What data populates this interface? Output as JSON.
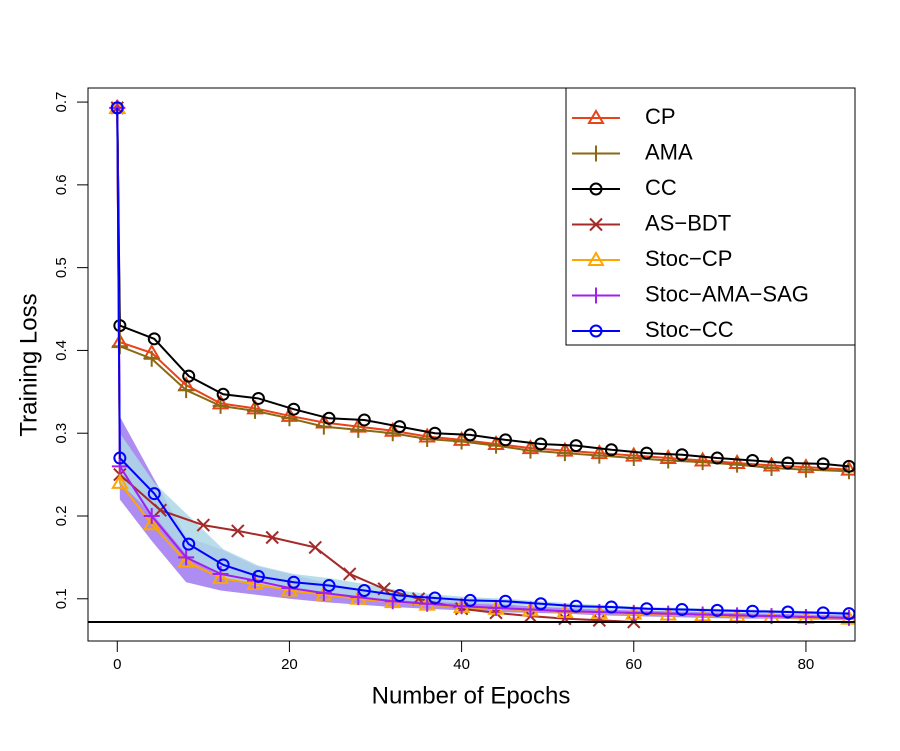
{
  "chart_data": {
    "type": "line",
    "xlabel": "Number of Epochs",
    "ylabel": "Training Loss",
    "xlim": [
      -3.4,
      85.7
    ],
    "ylim": [
      0.049,
      0.717
    ],
    "xticks": [
      0,
      20,
      40,
      60,
      80
    ],
    "yticks": [
      0.1,
      0.2,
      0.3,
      0.4,
      0.5,
      0.6,
      0.7
    ],
    "reference_line": 0.072,
    "legend": "top-right",
    "series": [
      {
        "name": "CP",
        "color": "#E8441A",
        "marker": "triangle",
        "x": [
          0,
          0.3,
          4,
          8,
          12,
          16,
          20,
          24,
          28,
          32,
          36,
          40,
          44,
          48,
          52,
          56,
          60,
          64,
          68,
          72,
          76,
          80,
          85
        ],
        "values": [
          0.693,
          0.41,
          0.397,
          0.358,
          0.336,
          0.33,
          0.321,
          0.313,
          0.308,
          0.303,
          0.296,
          0.292,
          0.287,
          0.282,
          0.279,
          0.276,
          0.273,
          0.27,
          0.267,
          0.264,
          0.261,
          0.259,
          0.256
        ]
      },
      {
        "name": "AMA",
        "color": "#8B6914",
        "marker": "plus",
        "x": [
          0,
          0.3,
          4,
          8,
          12,
          16,
          20,
          24,
          28,
          32,
          36,
          40,
          44,
          48,
          52,
          56,
          60,
          64,
          68,
          72,
          76,
          80,
          85
        ],
        "values": [
          0.693,
          0.405,
          0.39,
          0.352,
          0.333,
          0.327,
          0.318,
          0.308,
          0.304,
          0.3,
          0.293,
          0.29,
          0.285,
          0.279,
          0.276,
          0.273,
          0.27,
          0.267,
          0.265,
          0.262,
          0.258,
          0.256,
          0.254
        ]
      },
      {
        "name": "CC",
        "color": "#000000",
        "marker": "circle",
        "x": [
          0,
          0.3,
          4.3,
          8.3,
          12.3,
          16.4,
          20.5,
          24.6,
          28.7,
          32.8,
          36.9,
          41,
          45.1,
          49.2,
          53.3,
          57.4,
          61.5,
          65.6,
          69.7,
          73.8,
          77.9,
          82,
          85
        ],
        "values": [
          0.693,
          0.43,
          0.414,
          0.369,
          0.347,
          0.342,
          0.329,
          0.318,
          0.316,
          0.308,
          0.3,
          0.298,
          0.292,
          0.287,
          0.285,
          0.28,
          0.276,
          0.274,
          0.27,
          0.267,
          0.264,
          0.263,
          0.26
        ]
      },
      {
        "name": "AS−BDT",
        "color": "#A52A2A",
        "marker": "cross",
        "x": [
          0,
          0.3,
          5,
          10,
          14,
          18,
          23,
          27,
          31,
          35,
          40,
          44,
          48,
          52,
          56,
          60
        ],
        "values": [
          0.693,
          0.25,
          0.207,
          0.189,
          0.182,
          0.174,
          0.162,
          0.13,
          0.112,
          0.1,
          0.088,
          0.083,
          0.079,
          0.076,
          0.074,
          0.072
        ]
      },
      {
        "name": "Stoc−CP",
        "color": "#FFA500",
        "marker": "triangle",
        "x": [
          0,
          0.3,
          4,
          8,
          12,
          16,
          20,
          24,
          28,
          32,
          36,
          40,
          44,
          48,
          52,
          56,
          60,
          64,
          68,
          72,
          76,
          80,
          85
        ],
        "values": [
          0.693,
          0.24,
          0.19,
          0.145,
          0.125,
          0.118,
          0.11,
          0.105,
          0.1,
          0.096,
          0.093,
          0.09,
          0.088,
          0.086,
          0.084,
          0.083,
          0.082,
          0.081,
          0.08,
          0.079,
          0.078,
          0.077,
          0.076
        ]
      },
      {
        "name": "Stoc−AMA−SAG",
        "color": "#A020F0",
        "marker": "plus",
        "x": [
          0,
          0.3,
          4,
          8,
          12,
          16,
          20,
          24,
          28,
          32,
          36,
          40,
          44,
          48,
          52,
          56,
          60,
          64,
          68,
          72,
          76,
          80,
          85
        ],
        "values": [
          0.693,
          0.26,
          0.2,
          0.15,
          0.13,
          0.122,
          0.113,
          0.107,
          0.102,
          0.097,
          0.094,
          0.091,
          0.089,
          0.087,
          0.085,
          0.084,
          0.083,
          0.082,
          0.081,
          0.08,
          0.079,
          0.078,
          0.077
        ],
        "band": {
          "color": "#9F79EE",
          "upper": [
            0.693,
            0.32,
            0.25,
            0.175,
            0.16,
            0.14,
            0.13,
            0.12,
            0.112,
            0.105,
            0.1,
            0.097,
            0.094,
            0.091,
            0.089,
            0.087,
            0.086,
            0.085,
            0.084,
            0.083,
            0.082,
            0.081,
            0.08
          ],
          "lower": [
            0.693,
            0.22,
            0.17,
            0.12,
            0.11,
            0.105,
            0.1,
            0.096,
            0.093,
            0.09,
            0.088,
            0.086,
            0.084,
            0.083,
            0.082,
            0.08,
            0.079,
            0.078,
            0.077,
            0.076,
            0.076,
            0.075,
            0.074
          ]
        }
      },
      {
        "name": "Stoc−CC",
        "color": "#0000FF",
        "marker": "circle",
        "x": [
          0,
          0.3,
          4.3,
          8.3,
          12.3,
          16.4,
          20.5,
          24.6,
          28.7,
          32.8,
          36.9,
          41,
          45.1,
          49.2,
          53.3,
          57.4,
          61.5,
          65.6,
          69.7,
          73.8,
          77.9,
          82,
          85
        ],
        "values": [
          0.693,
          0.27,
          0.227,
          0.166,
          0.141,
          0.127,
          0.12,
          0.116,
          0.11,
          0.104,
          0.101,
          0.098,
          0.097,
          0.094,
          0.091,
          0.09,
          0.088,
          0.087,
          0.086,
          0.085,
          0.084,
          0.083,
          0.082
        ],
        "band": {
          "color": "#ADD8E6",
          "upper": [
            0.693,
            0.3,
            0.24,
            0.2,
            0.16,
            0.14,
            0.13,
            0.125,
            0.118,
            0.11,
            0.105,
            0.102,
            0.1,
            0.097,
            0.094,
            0.092,
            0.09,
            0.089,
            0.088,
            0.087,
            0.086,
            0.085,
            0.084
          ],
          "lower": [
            0.693,
            0.24,
            0.2,
            0.15,
            0.125,
            0.115,
            0.11,
            0.106,
            0.102,
            0.098,
            0.096,
            0.094,
            0.093,
            0.091,
            0.088,
            0.087,
            0.086,
            0.085,
            0.084,
            0.083,
            0.082,
            0.081,
            0.08
          ]
        }
      }
    ]
  }
}
